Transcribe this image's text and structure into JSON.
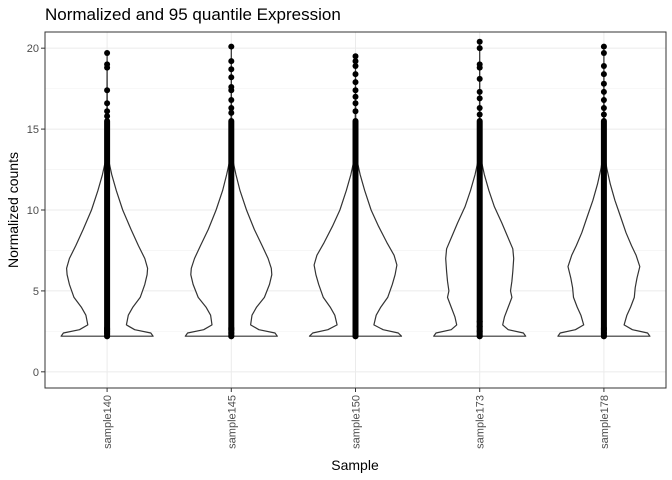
{
  "chart_data": {
    "type": "violin",
    "title": "Normalized and 95 quantile Expression",
    "xlabel": "Sample",
    "ylabel": "Normalized counts",
    "categories": [
      "sample140",
      "sample145",
      "sample150",
      "sample173",
      "sample178"
    ],
    "ylim": [
      -1,
      21
    ],
    "yticks": [
      0,
      5,
      10,
      15,
      20
    ],
    "grid": true,
    "violin_min": 2.2,
    "points_dense_range": [
      2.2,
      15.5
    ],
    "outliers": [
      [
        19.7,
        19.0,
        18.8,
        17.4,
        16.6,
        16.1,
        15.8,
        2.7,
        2.6,
        2.5,
        2.4,
        2.2
      ],
      [
        20.1,
        19.2,
        18.7,
        18.2,
        17.6,
        17.4,
        16.8,
        16.3,
        16.0,
        2.7,
        2.6,
        2.4,
        2.2
      ],
      [
        19.5,
        19.2,
        18.9,
        18.4,
        17.9,
        17.4,
        17.0,
        16.6,
        16.1,
        2.7,
        2.6,
        2.5,
        2.2
      ],
      [
        20.4,
        20.0,
        19.0,
        18.8,
        18.1,
        17.3,
        16.9,
        16.3,
        15.9,
        3.1,
        2.8,
        2.5,
        2.2
      ],
      [
        20.1,
        19.7,
        18.9,
        18.4,
        17.8,
        17.3,
        16.8,
        16.3,
        15.9,
        2.7,
        2.6,
        2.4,
        2.2
      ]
    ],
    "density_profiles": [
      [
        [
          2.2,
          1.0
        ],
        [
          2.4,
          0.95
        ],
        [
          2.6,
          0.6
        ],
        [
          2.9,
          0.42
        ],
        [
          3.5,
          0.46
        ],
        [
          4.0,
          0.56
        ],
        [
          4.6,
          0.72
        ],
        [
          5.4,
          0.82
        ],
        [
          6.0,
          0.87
        ],
        [
          6.4,
          0.88
        ],
        [
          7.0,
          0.82
        ],
        [
          7.8,
          0.68
        ],
        [
          8.8,
          0.52
        ],
        [
          10.0,
          0.34
        ],
        [
          11.2,
          0.2
        ],
        [
          12.2,
          0.1
        ],
        [
          13.0,
          0.04
        ],
        [
          13.8,
          0.015
        ],
        [
          15.0,
          0.006
        ],
        [
          17.5,
          0.003
        ],
        [
          19.7,
          0.0
        ]
      ],
      [
        [
          2.2,
          1.0
        ],
        [
          2.4,
          0.95
        ],
        [
          2.6,
          0.6
        ],
        [
          2.9,
          0.42
        ],
        [
          3.5,
          0.45
        ],
        [
          4.0,
          0.55
        ],
        [
          4.6,
          0.72
        ],
        [
          5.4,
          0.83
        ],
        [
          6.0,
          0.88
        ],
        [
          6.4,
          0.87
        ],
        [
          7.0,
          0.8
        ],
        [
          7.8,
          0.67
        ],
        [
          8.8,
          0.5
        ],
        [
          10.0,
          0.33
        ],
        [
          11.2,
          0.19
        ],
        [
          12.2,
          0.1
        ],
        [
          13.0,
          0.04
        ],
        [
          13.8,
          0.015
        ],
        [
          15.0,
          0.006
        ],
        [
          17.5,
          0.003
        ],
        [
          20.1,
          0.0
        ]
      ],
      [
        [
          2.2,
          1.0
        ],
        [
          2.4,
          0.93
        ],
        [
          2.6,
          0.6
        ],
        [
          2.9,
          0.4
        ],
        [
          3.5,
          0.45
        ],
        [
          4.0,
          0.55
        ],
        [
          4.6,
          0.7
        ],
        [
          5.4,
          0.8
        ],
        [
          6.0,
          0.86
        ],
        [
          6.6,
          0.9
        ],
        [
          7.2,
          0.84
        ],
        [
          8.0,
          0.68
        ],
        [
          9.0,
          0.5
        ],
        [
          10.0,
          0.34
        ],
        [
          11.2,
          0.2
        ],
        [
          12.2,
          0.1
        ],
        [
          13.0,
          0.04
        ],
        [
          13.8,
          0.015
        ],
        [
          15.0,
          0.006
        ],
        [
          17.5,
          0.003
        ],
        [
          19.5,
          0.0
        ]
      ],
      [
        [
          2.2,
          1.0
        ],
        [
          2.4,
          0.95
        ],
        [
          2.6,
          0.62
        ],
        [
          2.9,
          0.5
        ],
        [
          3.4,
          0.54
        ],
        [
          4.0,
          0.62
        ],
        [
          4.6,
          0.7
        ],
        [
          5.0,
          0.67
        ],
        [
          5.6,
          0.7
        ],
        [
          6.2,
          0.72
        ],
        [
          7.0,
          0.74
        ],
        [
          7.6,
          0.72
        ],
        [
          8.4,
          0.6
        ],
        [
          9.2,
          0.48
        ],
        [
          10.2,
          0.32
        ],
        [
          11.2,
          0.2
        ],
        [
          12.2,
          0.1
        ],
        [
          13.0,
          0.04
        ],
        [
          13.8,
          0.015
        ],
        [
          15.0,
          0.006
        ],
        [
          17.5,
          0.003
        ],
        [
          20.4,
          0.0
        ]
      ],
      [
        [
          2.2,
          1.0
        ],
        [
          2.4,
          0.95
        ],
        [
          2.6,
          0.62
        ],
        [
          2.9,
          0.44
        ],
        [
          3.5,
          0.5
        ],
        [
          4.0,
          0.58
        ],
        [
          4.6,
          0.66
        ],
        [
          5.2,
          0.68
        ],
        [
          5.8,
          0.72
        ],
        [
          6.5,
          0.78
        ],
        [
          7.2,
          0.7
        ],
        [
          7.8,
          0.6
        ],
        [
          8.6,
          0.48
        ],
        [
          9.6,
          0.36
        ],
        [
          10.6,
          0.24
        ],
        [
          11.6,
          0.14
        ],
        [
          12.6,
          0.06
        ],
        [
          13.4,
          0.02
        ],
        [
          15.0,
          0.006
        ],
        [
          17.5,
          0.003
        ],
        [
          20.1,
          0.0
        ]
      ]
    ]
  }
}
